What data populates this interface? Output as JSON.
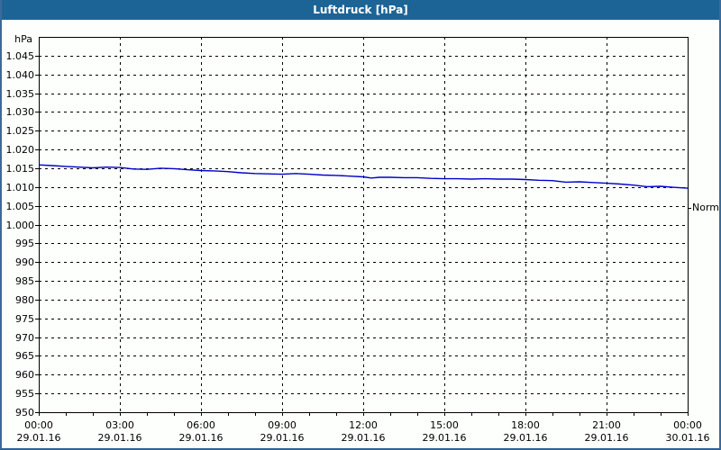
{
  "window": {
    "title": "Luftdruck [hPa]"
  },
  "colors": {
    "titlebar_bg": "#1d6496",
    "titlebar_text": "#ffffff",
    "window_border": "#3a6a9c",
    "page_bg": "#fcfffc",
    "grid": "#000000",
    "axis": "#000000",
    "line": "#0000cc",
    "label_text": "#000000"
  },
  "chart_data": {
    "type": "line",
    "title": "Luftdruck [hPa]",
    "unit_label": "hPa",
    "grid": "dashed",
    "ylim": [
      950,
      1050
    ],
    "y_tick_step": 5,
    "y_ticks": [
      {
        "value": 1045,
        "label": "1.045"
      },
      {
        "value": 1040,
        "label": "1.040"
      },
      {
        "value": 1035,
        "label": "1.035"
      },
      {
        "value": 1030,
        "label": "1.030"
      },
      {
        "value": 1025,
        "label": "1.025"
      },
      {
        "value": 1020,
        "label": "1.020"
      },
      {
        "value": 1015,
        "label": "1.015"
      },
      {
        "value": 1010,
        "label": "1.010"
      },
      {
        "value": 1005,
        "label": "1.005"
      },
      {
        "value": 1000,
        "label": "1.000"
      },
      {
        "value": 995,
        "label": "995"
      },
      {
        "value": 990,
        "label": "990"
      },
      {
        "value": 985,
        "label": "985"
      },
      {
        "value": 980,
        "label": "980"
      },
      {
        "value": 975,
        "label": "975"
      },
      {
        "value": 970,
        "label": "970"
      },
      {
        "value": 965,
        "label": "965"
      },
      {
        "value": 960,
        "label": "960"
      },
      {
        "value": 955,
        "label": "955"
      },
      {
        "value": 950,
        "label": "950"
      }
    ],
    "xlim_hours": [
      0,
      24
    ],
    "x_minor_tick_hours": 1,
    "x_ticks": [
      {
        "hour": 0,
        "time": "00:00",
        "date": "29.01.16"
      },
      {
        "hour": 3,
        "time": "03:00",
        "date": "29.01.16"
      },
      {
        "hour": 6,
        "time": "06:00",
        "date": "29.01.16"
      },
      {
        "hour": 9,
        "time": "09:00",
        "date": "29.01.16"
      },
      {
        "hour": 12,
        "time": "12:00",
        "date": "29.01.16"
      },
      {
        "hour": 15,
        "time": "15:00",
        "date": "29.01.16"
      },
      {
        "hour": 18,
        "time": "18:00",
        "date": "29.01.16"
      },
      {
        "hour": 21,
        "time": "21:00",
        "date": "29.01.16"
      },
      {
        "hour": 24,
        "time": "00:00",
        "date": "30.01.16"
      }
    ],
    "annotation": {
      "label": "Normal",
      "value": 1004.5
    },
    "series": [
      {
        "name": "Luftdruck",
        "color": "#0000cc",
        "points": [
          [
            0,
            1015.9
          ],
          [
            0.5,
            1015.7
          ],
          [
            1,
            1015.5
          ],
          [
            1.5,
            1015.3
          ],
          [
            2,
            1015.1
          ],
          [
            2.5,
            1015.3
          ],
          [
            3,
            1015.2
          ],
          [
            3.5,
            1014.8
          ],
          [
            4,
            1014.7
          ],
          [
            4.5,
            1015.0
          ],
          [
            5,
            1014.9
          ],
          [
            5.5,
            1014.6
          ],
          [
            6,
            1014.4
          ],
          [
            6.5,
            1014.3
          ],
          [
            7,
            1014.1
          ],
          [
            7.5,
            1013.8
          ],
          [
            8,
            1013.6
          ],
          [
            8.5,
            1013.5
          ],
          [
            9,
            1013.4
          ],
          [
            9.5,
            1013.6
          ],
          [
            10,
            1013.4
          ],
          [
            10.5,
            1013.2
          ],
          [
            11,
            1013.1
          ],
          [
            11.5,
            1012.9
          ],
          [
            12,
            1012.7
          ],
          [
            12.3,
            1012.4
          ],
          [
            12.6,
            1012.6
          ],
          [
            13,
            1012.6
          ],
          [
            13.5,
            1012.5
          ],
          [
            14,
            1012.5
          ],
          [
            14.5,
            1012.3
          ],
          [
            15,
            1012.2
          ],
          [
            15.5,
            1012.2
          ],
          [
            16,
            1012.1
          ],
          [
            16.5,
            1012.2
          ],
          [
            17,
            1012.1
          ],
          [
            17.5,
            1012.1
          ],
          [
            18,
            1012.0
          ],
          [
            18.5,
            1011.8
          ],
          [
            19,
            1011.7
          ],
          [
            19.5,
            1011.3
          ],
          [
            20,
            1011.4
          ],
          [
            20.5,
            1011.2
          ],
          [
            21,
            1011.0
          ],
          [
            21.5,
            1010.8
          ],
          [
            22,
            1010.5
          ],
          [
            22.5,
            1010.1
          ],
          [
            23,
            1010.2
          ],
          [
            23.5,
            1009.9
          ],
          [
            24,
            1009.7
          ]
        ]
      }
    ]
  }
}
